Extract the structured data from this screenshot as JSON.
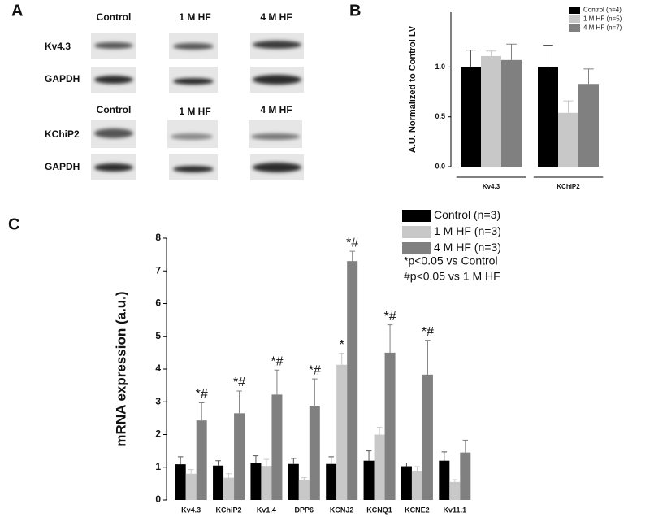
{
  "panel_labels": [
    "A",
    "B",
    "C"
  ],
  "blot": {
    "columns_top": [
      "Control",
      "1 M HF",
      "4 M HF"
    ],
    "rows_top": [
      "Kv4.3",
      "GAPDH"
    ],
    "columns_bottom": [
      "Control",
      "1 M HF",
      "4 M HF"
    ],
    "rows_bottom": [
      "KChiP2",
      "GAPDH"
    ]
  },
  "chart_data": [
    {
      "type": "bar",
      "y_label": "A.U. Normalized to Control LV",
      "categories": [
        "Kv4.3",
        "KChiP2"
      ],
      "series": [
        {
          "name": "Control (n=4)",
          "color": "#000000",
          "values": [
            1.0,
            1.0
          ],
          "errors": [
            0.17,
            0.22
          ]
        },
        {
          "name": "1 M HF (n=5)",
          "color": "#c8c8c8",
          "values": [
            1.11,
            0.54
          ],
          "errors": [
            0.05,
            0.12
          ]
        },
        {
          "name": "4 M HF (n=7)",
          "color": "#808080",
          "values": [
            1.07,
            0.83
          ],
          "errors": [
            0.16,
            0.15
          ]
        }
      ],
      "ylim": [
        0,
        1.55
      ],
      "yticks": [
        {
          "value": 0,
          "label": "0.0"
        },
        {
          "value": 0.5,
          "label": "0.5"
        },
        {
          "value": 1,
          "label": "1.0"
        }
      ],
      "legend": "upper right"
    },
    {
      "type": "bar",
      "y_label": "mRNA expression (a.u.)",
      "categories": [
        "Kv4.3",
        "KChiP2",
        "Kv1.4",
        "DPP6",
        "KCNJ2",
        "KCNQ1",
        "KCNE2",
        "Kv11.1"
      ],
      "series": [
        {
          "name": "Control (n=3)",
          "color": "#000000",
          "values": [
            1.09,
            1.05,
            1.13,
            1.1,
            1.1,
            1.2,
            1.03,
            1.2
          ],
          "errors": [
            0.23,
            0.15,
            0.22,
            0.17,
            0.22,
            0.3,
            0.1,
            0.27
          ],
          "marks": [
            null,
            null,
            null,
            null,
            null,
            null,
            null,
            null
          ]
        },
        {
          "name": "1 M HF (n=3)",
          "color": "#c8c8c8",
          "values": [
            0.8,
            0.68,
            1.04,
            0.6,
            4.13,
            2.0,
            0.87,
            0.55
          ],
          "errors": [
            0.13,
            0.12,
            0.2,
            0.08,
            0.35,
            0.22,
            0.15,
            0.07
          ],
          "marks": [
            null,
            null,
            null,
            null,
            "*",
            null,
            null,
            null
          ]
        },
        {
          "name": "4 M HF (n=3)",
          "color": "#808080",
          "values": [
            2.43,
            2.65,
            3.22,
            2.88,
            7.3,
            4.5,
            3.83,
            1.45
          ],
          "errors": [
            0.54,
            0.68,
            0.75,
            0.82,
            0.3,
            0.85,
            1.05,
            0.38
          ],
          "marks": [
            "*#",
            "*#",
            "*#",
            "*#",
            "*#",
            "*#",
            "*#",
            null
          ]
        }
      ],
      "ylim": [
        0,
        8
      ],
      "yticks": [
        0,
        1,
        2,
        3,
        4,
        5,
        6,
        7,
        8
      ],
      "notes": [
        "*p<0.05 vs Control",
        "#p<0.05 vs 1 M HF"
      ],
      "legend": "upper right"
    }
  ]
}
